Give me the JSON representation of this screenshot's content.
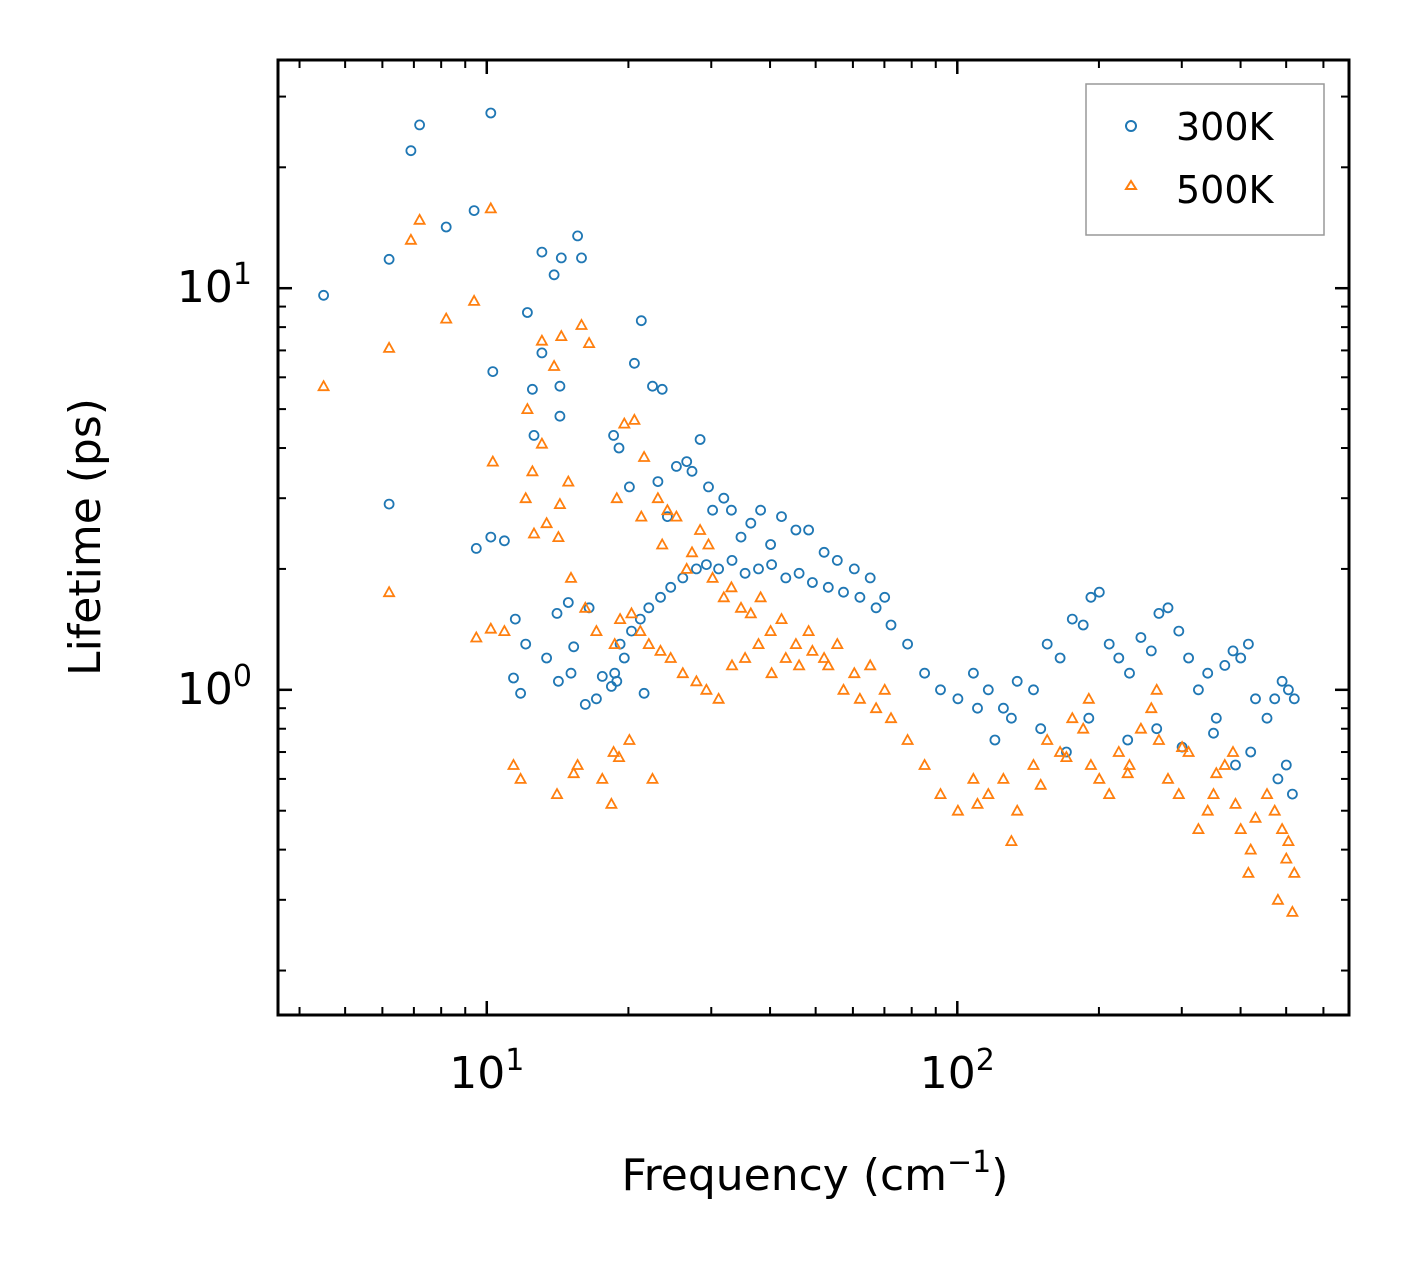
{
  "chart_data": {
    "type": "scatter",
    "title": "",
    "xlabel": "Frequency (cm",
    "xlabel_sup": "−1",
    "xlabel_end": ")",
    "ylabel": "Lifetime (ps)",
    "xscale": "log",
    "yscale": "log",
    "xlim": [
      3.6,
      680
    ],
    "ylim": [
      0.155,
      37
    ],
    "x_tick_labels": [
      {
        "value": 10,
        "base": "10",
        "exp": "1"
      },
      {
        "value": 100,
        "base": "10",
        "exp": "2"
      }
    ],
    "y_tick_labels": [
      {
        "value": 1,
        "base": "10",
        "exp": "0"
      },
      {
        "value": 10,
        "base": "10",
        "exp": "1"
      }
    ],
    "legend": {
      "position": "top-right",
      "entries": [
        {
          "label": "300K",
          "marker": "circle",
          "color": "#1f77b4"
        },
        {
          "label": "500K",
          "marker": "triangle",
          "color": "#ff7f0e"
        }
      ]
    },
    "series": [
      {
        "name": "300K",
        "marker": "circle",
        "color": "#1f77b4",
        "x": [
          4.5,
          6.2,
          6.9,
          7.2,
          8.2,
          9.4,
          10.2,
          6.2,
          9.5,
          10.3,
          10.2,
          10.9,
          11.4,
          11.8,
          12.2,
          12.5,
          12.6,
          13.1,
          13.1,
          13.9,
          14.1,
          14.3,
          14.3,
          14.4,
          14.9,
          15.3,
          15.6,
          15.9,
          16.5,
          17.6,
          18.4,
          18.6,
          18.9,
          19.1,
          19.6,
          20.1,
          20.6,
          21.3,
          21.6,
          22.5,
          23.1,
          23.6,
          24.2,
          25.3,
          26.6,
          27.3,
          28.4,
          29.6,
          30.2,
          31.9,
          33.1,
          34.7,
          36.4,
          38.2,
          40.1,
          42.3,
          45.4,
          48.3,
          52.1,
          55.6,
          60.4,
          65.3,
          70.1,
          11.5,
          12.1,
          13.4,
          14.2,
          15.1,
          16.2,
          17.1,
          18.7,
          19.2,
          20.3,
          21.2,
          22.1,
          23.4,
          24.6,
          26.1,
          27.9,
          29.3,
          31.1,
          33.2,
          35.4,
          37.8,
          40.3,
          43.2,
          46.1,
          49.2,
          53.2,
          57.3,
          62.1,
          67.2,
          72.3,
          78.4,
          85.2,
          92.1,
          100.3,
          108.2,
          116.4,
          125.3,
          134.1,
          145.2,
          155.3,
          165.4,
          175.6,
          185.2,
          192.3,
          200.4,
          210.3,
          220.4,
          232.3,
          245.6,
          258.4,
          268.2,
          280.4,
          295.6,
          310.2,
          325.4,
          340.6,
          355.2,
          370.3,
          385.4,
          400.2,
          415.6,
          430.4,
          455.3,
          472.6,
          490.2,
          505.6,
          520.3,
          110.4,
          120.2,
          130.3,
          150.4,
          170.6,
          190.3,
          230.2,
          265.4,
          300.4,
          350.3,
          390.2,
          420.4,
          480.2,
          500.3,
          515.4
        ],
        "y": [
          9.6,
          11.8,
          22.0,
          25.5,
          14.2,
          15.6,
          27.3,
          2.9,
          2.25,
          6.2,
          2.4,
          2.35,
          1.07,
          0.98,
          8.7,
          5.6,
          4.3,
          12.3,
          6.9,
          10.8,
          1.55,
          5.7,
          4.8,
          11.9,
          1.65,
          1.28,
          13.5,
          11.9,
          1.6,
          1.08,
          1.02,
          4.3,
          1.05,
          4.0,
          1.2,
          3.2,
          6.5,
          8.3,
          0.98,
          5.7,
          3.3,
          5.6,
          2.7,
          3.6,
          3.7,
          3.5,
          4.2,
          3.2,
          2.8,
          3.0,
          2.8,
          2.4,
          2.6,
          2.8,
          2.3,
          2.7,
          2.5,
          2.5,
          2.2,
          2.1,
          2.0,
          1.9,
          1.7,
          1.5,
          1.3,
          1.2,
          1.05,
          1.1,
          0.92,
          0.95,
          1.1,
          1.3,
          1.4,
          1.5,
          1.6,
          1.7,
          1.8,
          1.9,
          2.0,
          2.05,
          2.0,
          2.1,
          1.95,
          2.0,
          2.05,
          1.9,
          1.95,
          1.85,
          1.8,
          1.75,
          1.7,
          1.6,
          1.45,
          1.3,
          1.1,
          1.0,
          0.95,
          1.1,
          1.0,
          0.9,
          1.05,
          1.0,
          1.3,
          1.2,
          1.5,
          1.45,
          1.7,
          1.75,
          1.3,
          1.2,
          1.1,
          1.35,
          1.25,
          1.55,
          1.6,
          1.4,
          1.2,
          1.0,
          1.1,
          0.85,
          1.15,
          1.25,
          1.2,
          1.3,
          0.95,
          0.85,
          0.95,
          1.05,
          1.0,
          0.95,
          0.9,
          0.75,
          0.85,
          0.8,
          0.7,
          0.85,
          0.75,
          0.8,
          0.72,
          0.78,
          0.65,
          0.7,
          0.6,
          0.65,
          0.55
        ]
      },
      {
        "name": "500K",
        "marker": "triangle",
        "color": "#ff7f0e",
        "x": [
          4.5,
          6.2,
          6.2,
          6.9,
          7.2,
          8.2,
          9.4,
          9.5,
          10.2,
          10.3,
          10.2,
          10.9,
          11.4,
          11.8,
          12.2,
          12.5,
          12.6,
          13.1,
          13.1,
          13.9,
          14.1,
          14.3,
          14.4,
          14.9,
          15.3,
          15.6,
          15.9,
          16.5,
          17.6,
          18.4,
          18.6,
          18.9,
          19.1,
          19.6,
          20.1,
          20.6,
          21.3,
          21.6,
          22.5,
          23.1,
          23.6,
          24.2,
          25.3,
          26.6,
          27.3,
          28.4,
          29.6,
          30.2,
          31.9,
          33.1,
          34.7,
          36.4,
          38.2,
          40.1,
          42.3,
          45.4,
          48.3,
          52.1,
          55.6,
          60.4,
          65.3,
          70.1,
          12.1,
          13.4,
          14.2,
          15.1,
          16.2,
          17.1,
          18.7,
          19.2,
          20.3,
          21.2,
          22.1,
          23.4,
          24.6,
          26.1,
          27.9,
          29.3,
          31.1,
          33.2,
          35.4,
          37.8,
          40.3,
          43.2,
          46.1,
          49.2,
          53.2,
          57.3,
          62.1,
          67.2,
          72.3,
          78.4,
          85.2,
          92.1,
          100.3,
          108.2,
          116.4,
          125.3,
          134.1,
          145.2,
          155.3,
          165.4,
          175.6,
          185.2,
          192.3,
          200.4,
          210.3,
          220.4,
          232.3,
          245.6,
          258.4,
          268.2,
          280.4,
          295.6,
          310.2,
          325.4,
          340.6,
          355.2,
          370.3,
          385.4,
          400.2,
          415.6,
          430.4,
          455.3,
          472.6,
          490.2,
          505.6,
          520.3,
          110.4,
          130.3,
          150.4,
          170.6,
          190.3,
          230.2,
          265.4,
          300.4,
          350.3,
          390.2,
          420.4,
          480.2,
          500.3,
          515.4
        ],
        "y": [
          5.7,
          7.1,
          1.75,
          13.2,
          14.8,
          8.4,
          9.3,
          1.35,
          15.8,
          3.7,
          1.42,
          1.4,
          0.65,
          0.6,
          5.0,
          3.5,
          2.45,
          7.4,
          4.1,
          6.4,
          0.55,
          2.9,
          7.6,
          3.3,
          0.62,
          0.65,
          8.1,
          7.3,
          0.6,
          0.52,
          0.7,
          3.0,
          0.68,
          4.6,
          0.75,
          4.7,
          2.7,
          3.8,
          0.6,
          3.0,
          2.3,
          2.8,
          2.7,
          2.0,
          2.2,
          2.5,
          2.3,
          1.9,
          1.7,
          1.8,
          1.6,
          1.55,
          1.7,
          1.4,
          1.5,
          1.3,
          1.4,
          1.2,
          1.3,
          1.1,
          1.15,
          1.0,
          3.0,
          2.6,
          2.4,
          1.9,
          1.6,
          1.4,
          1.3,
          1.5,
          1.55,
          1.4,
          1.3,
          1.25,
          1.2,
          1.1,
          1.05,
          1.0,
          0.95,
          1.15,
          1.2,
          1.3,
          1.1,
          1.2,
          1.15,
          1.25,
          1.15,
          1.0,
          0.95,
          0.9,
          0.85,
          0.75,
          0.65,
          0.55,
          0.5,
          0.6,
          0.55,
          0.6,
          0.5,
          0.65,
          0.75,
          0.7,
          0.85,
          0.8,
          0.65,
          0.6,
          0.55,
          0.7,
          0.65,
          0.8,
          0.9,
          0.75,
          0.6,
          0.55,
          0.7,
          0.45,
          0.5,
          0.62,
          0.65,
          0.7,
          0.45,
          0.35,
          0.48,
          0.55,
          0.5,
          0.45,
          0.42,
          0.35,
          0.52,
          0.42,
          0.58,
          0.68,
          0.95,
          0.62,
          1.0,
          0.72,
          0.55,
          0.52,
          0.4,
          0.3,
          0.38,
          0.28
        ]
      }
    ]
  }
}
